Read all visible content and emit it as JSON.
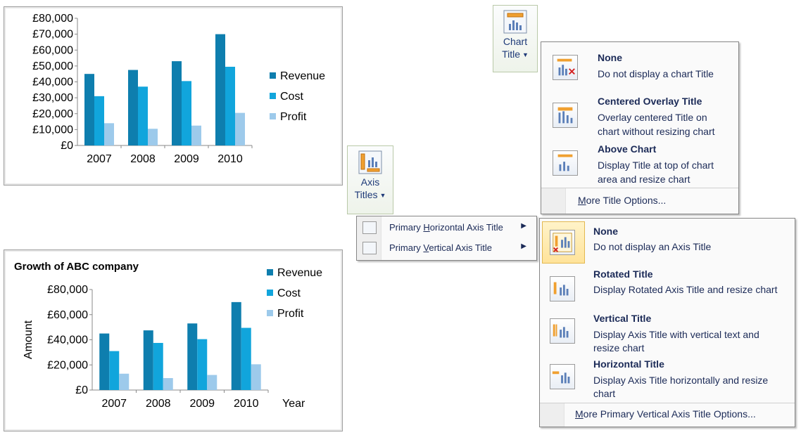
{
  "chart_data": [
    {
      "type": "bar",
      "title": "",
      "categories": [
        "2007",
        "2008",
        "2009",
        "2010"
      ],
      "series": [
        {
          "name": "Revenue",
          "values": [
            45000,
            47500,
            53000,
            70000
          ]
        },
        {
          "name": "Cost",
          "values": [
            31000,
            37000,
            40500,
            49500
          ]
        },
        {
          "name": "Profit",
          "values": [
            14000,
            10500,
            12500,
            20500
          ]
        }
      ],
      "xlabel": "",
      "ylabel": "",
      "ylim": [
        0,
        80000
      ],
      "y_ticks": [
        "£0",
        "£10,000",
        "£20,000",
        "£30,000",
        "£40,000",
        "£50,000",
        "£60,000",
        "£70,000",
        "£80,000"
      ],
      "legend": "right",
      "grid": false
    },
    {
      "type": "bar",
      "title": "Growth of ABC company",
      "categories": [
        "2007",
        "2008",
        "2009",
        "2010"
      ],
      "series": [
        {
          "name": "Revenue",
          "values": [
            45000,
            47500,
            53000,
            70000
          ]
        },
        {
          "name": "Cost",
          "values": [
            31000,
            37500,
            40500,
            49500
          ]
        },
        {
          "name": "Profit",
          "values": [
            13000,
            9500,
            12000,
            20500
          ]
        }
      ],
      "xlabel": "Year",
      "ylabel": "Amount",
      "ylim": [
        0,
        80000
      ],
      "y_ticks": [
        "£0",
        "£20,000",
        "£40,000",
        "£60,000",
        "£80,000"
      ],
      "legend": "top-right",
      "grid": false
    }
  ],
  "colors": {
    "revenue": "#0e7eae",
    "cost": "#11a5dc",
    "profit": "#9dcaeb"
  },
  "chart_title_button": {
    "label_line1": "Chart",
    "label_line2": "Title",
    "icon": "chart-title-icon"
  },
  "axis_titles_button": {
    "label_line1": "Axis",
    "label_line2": "Titles",
    "icon": "axis-titles-icon"
  },
  "chart_title_menu": {
    "items": [
      {
        "title": "None",
        "desc_line1": "Do not display a chart Title",
        "desc_line2": ""
      },
      {
        "title": "Centered Overlay Title",
        "desc_line1": "Overlay centered Title on",
        "desc_line2": "chart without resizing chart"
      },
      {
        "title": "Above Chart",
        "desc_line1": "Display Title at top of chart",
        "desc_line2": "area and resize chart"
      }
    ],
    "more_prefix": "M",
    "more_rest": "ore Title Options..."
  },
  "axis_titles_submenu": {
    "items": [
      {
        "pre": "Primary ",
        "u": "H",
        "post": "orizontal Axis Title"
      },
      {
        "pre": "Primary ",
        "u": "V",
        "post": "ertical Axis Title"
      }
    ]
  },
  "axis_title_menu": {
    "items": [
      {
        "title": "None",
        "desc_line1": "Do not display an Axis Title",
        "desc_line2": ""
      },
      {
        "title": "Rotated Title",
        "desc_line1": "Display Rotated Axis Title and resize chart",
        "desc_line2": ""
      },
      {
        "title": "Vertical Title",
        "desc_line1": "Display Axis Title with vertical text and",
        "desc_line2": "resize chart"
      },
      {
        "title": "Horizontal Title",
        "desc_line1": "Display Axis Title horizontally and resize",
        "desc_line2": "chart"
      }
    ],
    "more_prefix": "M",
    "more_rest": "ore Primary Vertical Axis Title Options..."
  }
}
